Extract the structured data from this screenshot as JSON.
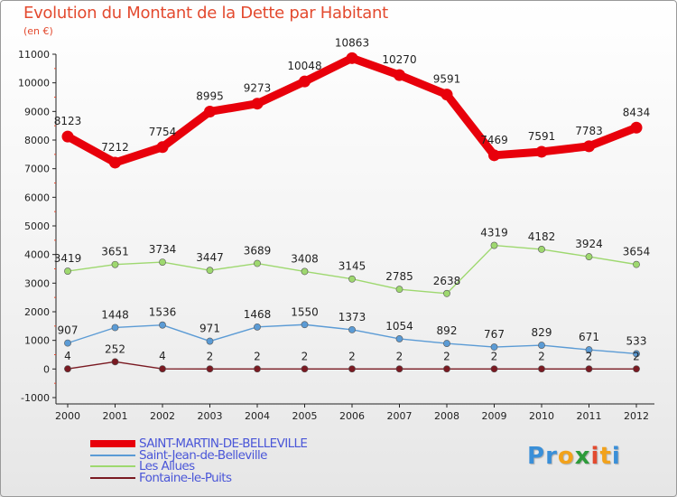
{
  "title": "Evolution du Montant de la Dette par Habitant",
  "subtitle": "(en €)",
  "logo": {
    "letters": [
      "P",
      "r",
      "o",
      "x",
      "i",
      "t",
      "i"
    ],
    "colors": [
      "#3a8fd8",
      "#3a8fd8",
      "#f2a21b",
      "#2d9b3a",
      "#e34a2f",
      "#f2a21b",
      "#3a8fd8"
    ]
  },
  "chart_data": {
    "type": "line",
    "title": "Evolution du Montant de la Dette par Habitant",
    "subtitle": "(en €)",
    "x": [
      "2000",
      "2001",
      "2002",
      "2003",
      "2004",
      "2005",
      "2006",
      "2007",
      "2008",
      "2009",
      "2010",
      "2011",
      "2012"
    ],
    "ylim": [
      -1000,
      11000
    ],
    "yticks": [
      -1000,
      0,
      1000,
      2000,
      3000,
      4000,
      5000,
      6000,
      7000,
      8000,
      9000,
      10000,
      11000
    ],
    "grid": false,
    "legend_position": "bottom-left",
    "series": [
      {
        "name": "SAINT-MARTIN-DE-BELLEVILLE",
        "color": "#e8000b",
        "values": [
          8123,
          7212,
          7754,
          8995,
          9273,
          10048,
          10863,
          10270,
          9591,
          7469,
          7591,
          7783,
          8434
        ]
      },
      {
        "name": "Saint-Jean-de-Belleville",
        "color": "#5b9bd5",
        "values": [
          907,
          1448,
          1536,
          971,
          1468,
          1550,
          1373,
          1054,
          892,
          767,
          829,
          671,
          533
        ]
      },
      {
        "name": "Les Allues",
        "color": "#9ed86f",
        "values": [
          3419,
          3651,
          3734,
          3447,
          3689,
          3408,
          3145,
          2785,
          2638,
          4319,
          4182,
          3924,
          3654
        ]
      },
      {
        "name": "Fontaine-le-Puits",
        "color": "#7a1a22",
        "values": [
          4,
          252,
          4,
          2,
          2,
          2,
          2,
          2,
          2,
          2,
          2,
          2,
          2
        ]
      }
    ]
  }
}
